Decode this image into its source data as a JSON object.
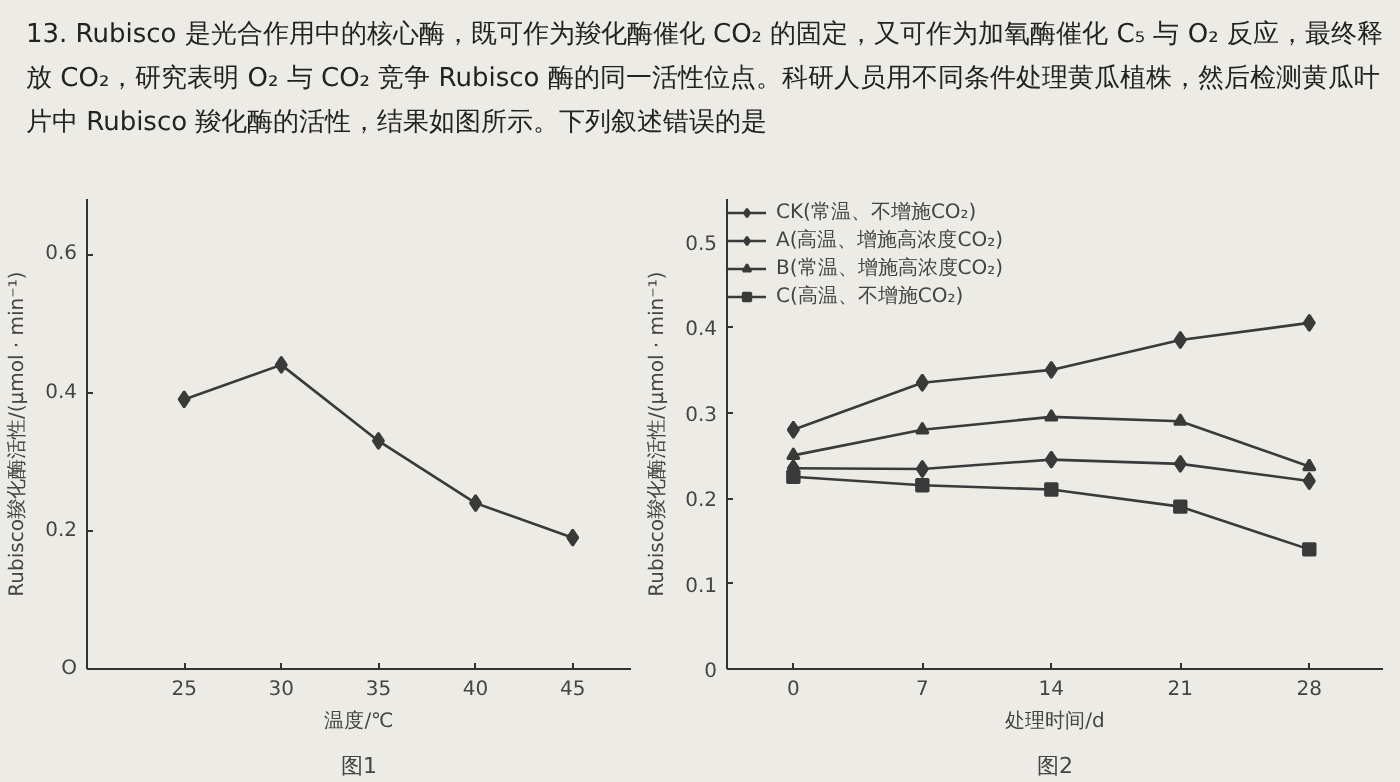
{
  "chart_data": [
    {
      "type": "other",
      "annotations": [
        "13. Rubisco 是光合作用中的核心酶，既可作为羧化酶催化 CO₂ 的固定，又可作为加氧酶催化 C₅ 与 O₂ 反应，最终释放 CO₂，研究表明 O₂ 与 CO₂ 竞争 Rubisco 酶的同一活性位点。科研人员用不同条件处理黄瓜植株，然后检测黄瓜叶片中 Rubisco 羧化酶的活性，结果如图所示。下列叙述错误的是"
      ]
    },
    {
      "type": "line",
      "x": [
        25,
        30,
        35,
        40,
        45
      ],
      "xlim": [
        20,
        48
      ],
      "xticks": [
        25,
        30,
        35,
        40,
        45
      ],
      "ylim": [
        0,
        0.68
      ],
      "yticks": [
        {
          "value": 0,
          "label": "O"
        },
        0.2,
        0.4,
        0.6
      ],
      "xlabel": "温度/℃",
      "ylabel": "Rubisco羧化酶活性/(μmol · min⁻¹)",
      "annotations": [
        "图1"
      ],
      "marker": "diamond",
      "grid": false,
      "legend": false,
      "series": [
        {
          "color": "#3a3a3a",
          "values": [
            0.39,
            0.44,
            0.33,
            0.24,
            0.19
          ]
        }
      ]
    },
    {
      "type": "line",
      "x": [
        0,
        7,
        14,
        21,
        28
      ],
      "xlim": [
        -3.6,
        32
      ],
      "xticks": [
        0,
        7,
        14,
        21,
        28
      ],
      "ylim": [
        0,
        0.55
      ],
      "yticks": [
        0,
        0.1,
        0.2,
        0.3,
        0.4,
        0.5
      ],
      "xlabel": "处理时间/d",
      "ylabel": "Rubisco羧化酶活性/(μmol · min⁻¹)",
      "annotations": [
        "图2"
      ],
      "grid": false,
      "legend": "top left",
      "series": [
        {
          "name": "CK(常温、不增施CO₂)",
          "color": "#3a3a3a",
          "marker": "diamond",
          "values": [
            0.235,
            0.234,
            0.245,
            0.24,
            0.22
          ]
        },
        {
          "name": "A(高温、增施高浓度CO₂)",
          "color": "#3a3a3a",
          "marker": "diamond",
          "values": [
            0.28,
            0.335,
            0.35,
            0.385,
            0.405
          ]
        },
        {
          "name": "B(常温、增施高浓度CO₂)",
          "color": "#3a3a3a",
          "marker": "triangle",
          "values": [
            0.25,
            0.28,
            0.295,
            0.29,
            0.237
          ]
        },
        {
          "name": "C(高温、不增施CO₂)",
          "color": "#3a3a3a",
          "marker": "square",
          "values": [
            0.225,
            0.215,
            0.21,
            0.19,
            0.14
          ]
        }
      ]
    }
  ]
}
